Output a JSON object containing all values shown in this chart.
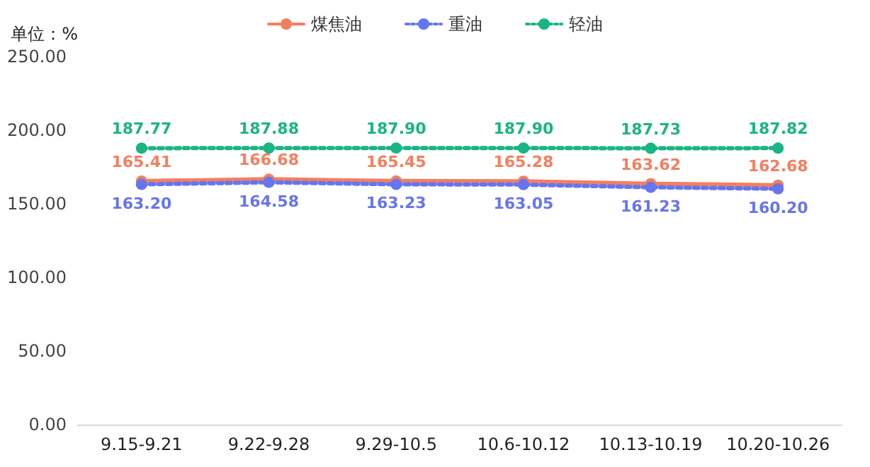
{
  "chart_data": {
    "type": "line",
    "ylabel": "单位：%",
    "categories": [
      "9.15-9.21",
      "9.22-9.28",
      "9.29-10.5",
      "10.6-10.12",
      "10.13-10.19",
      "10.20-10.26"
    ],
    "series": [
      {
        "name": "煤焦油",
        "color": "#f47f5f",
        "line_style": "solid",
        "values": [
          165.41,
          166.68,
          165.45,
          165.28,
          163.62,
          162.68
        ],
        "value_labels": [
          "165.41",
          "166.68",
          "165.45",
          "165.28",
          "163.62",
          "162.68"
        ]
      },
      {
        "name": "重油",
        "color": "#6675ee",
        "line_style": "dotted",
        "values": [
          163.2,
          164.58,
          163.23,
          163.05,
          161.23,
          160.2
        ],
        "value_labels": [
          "163.20",
          "164.58",
          "163.23",
          "163.05",
          "161.23",
          "160.20"
        ]
      },
      {
        "name": "轻油",
        "color": "#1bb485",
        "line_style": "dotted",
        "values": [
          187.77,
          187.88,
          187.9,
          187.9,
          187.73,
          187.82
        ],
        "value_labels": [
          "187.77",
          "187.88",
          "187.90",
          "187.90",
          "187.73",
          "187.82"
        ]
      }
    ],
    "ylim": [
      0,
      250
    ],
    "yticks": [
      {
        "value": 0,
        "label": "0.00"
      },
      {
        "value": 50,
        "label": "50.00"
      },
      {
        "value": 100,
        "label": "100.00"
      },
      {
        "value": 150,
        "label": "150.00"
      },
      {
        "value": 200,
        "label": "200.00"
      },
      {
        "value": 250,
        "label": "250.00"
      }
    ],
    "grid": false,
    "legend": "top",
    "marker": "circle"
  }
}
